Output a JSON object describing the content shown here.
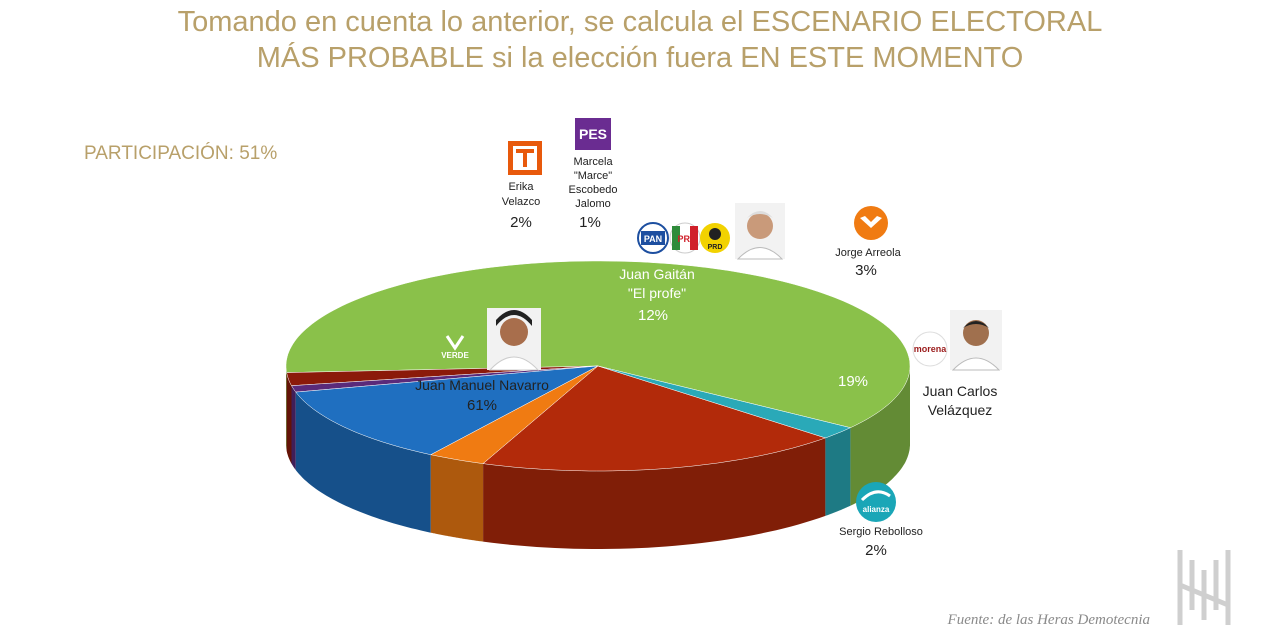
{
  "header": {
    "title_line1": "Tomando en cuenta lo anterior, se calcula el ESCENARIO ELECTORAL",
    "title_line2": "MÁS PROBABLE si la elección fuera EN ESTE MOMENTO",
    "participation": "PARTICIPACIÓN: 51%"
  },
  "footer": {
    "source": "Fuente: de las Heras Demotecnia"
  },
  "chart_data": {
    "type": "pie",
    "style": "3d",
    "series": [
      {
        "name": "Juan Manuel Navarro",
        "value": 61,
        "label": "61%",
        "color": "#8ac14a",
        "party_logos": [
          "VERDE"
        ]
      },
      {
        "name": "Erika Velazco",
        "value": 2,
        "label": "2%",
        "color": "#8b1a0a",
        "party_logos": [
          "PT"
        ]
      },
      {
        "name": "Marcela \"Marce\" Escobedo Jalomo",
        "value": 1,
        "label": "1%",
        "color": "#5a2a7a",
        "party_logos": [
          "PES"
        ]
      },
      {
        "name": "Juan Gaitán \"El profe\"",
        "value": 12,
        "label": "12%",
        "color": "#1f6fc0",
        "party_logos": [
          "PAN",
          "PRI",
          "PRD"
        ]
      },
      {
        "name": "Jorge Arreola",
        "value": 3,
        "label": "3%",
        "color": "#f07b12",
        "party_logos": [
          "MOVIMIENTO CIUDADANO"
        ]
      },
      {
        "name": "Juan Carlos Velázquez",
        "value": 19,
        "label": "19%",
        "color": "#b22a0a",
        "party_logos": [
          "morena"
        ]
      },
      {
        "name": "Sergio Rebolloso",
        "value": 2,
        "label": "2%",
        "color": "#2aa9b8",
        "party_logos": [
          "alianza"
        ]
      }
    ],
    "labels": {
      "navarro_name": "Juan Manuel Navarro",
      "navarro_pct": "61%",
      "erika_name1": "Erika",
      "erika_name2": "Velazco",
      "erika_pct": "2%",
      "marce_name1": "Marcela",
      "marce_name2": "\"Marce\"",
      "marce_name3": "Escobedo",
      "marce_name4": "Jalomo",
      "marce_pct": "1%",
      "gaitan_name1": "Juan Gaitán",
      "gaitan_name2": "\"El profe\"",
      "gaitan_pct": "12%",
      "arreola_name": "Jorge Arreola",
      "arreola_pct": "3%",
      "velazquez_pct": "19%",
      "velazquez_name1": "Juan Carlos",
      "velazquez_name2": "Velázquez",
      "rebolloso_name": "Sergio Rebolloso",
      "rebolloso_pct": "2%"
    },
    "logos": {
      "verde": "VERDE",
      "pes": "PES",
      "pan": "PAN",
      "pri": "PRI",
      "prd": "PRD",
      "morena": "morena",
      "alianza": "alianza"
    }
  }
}
